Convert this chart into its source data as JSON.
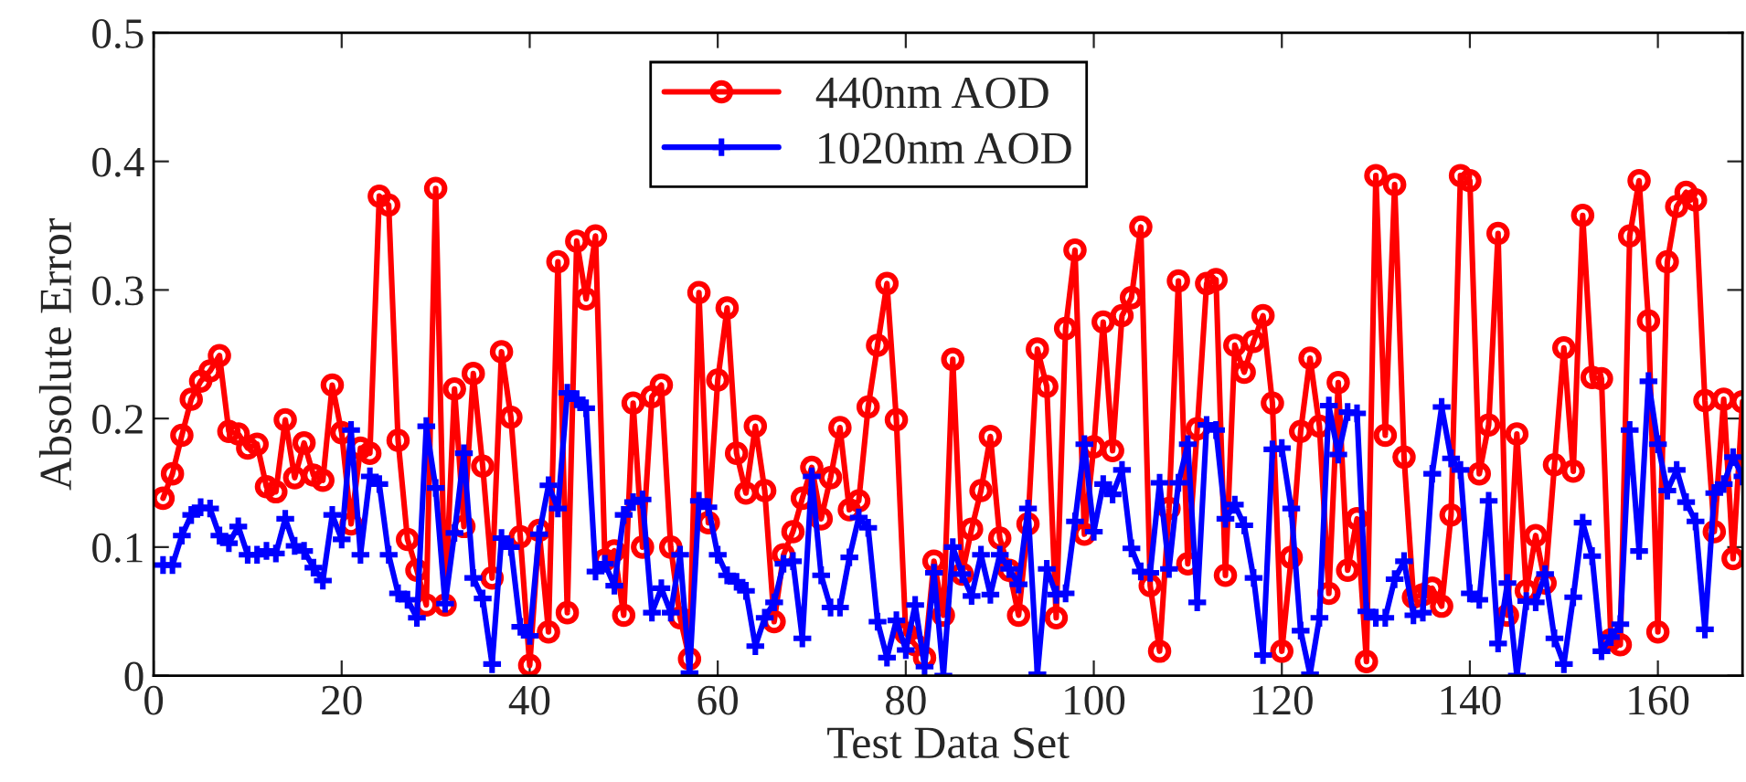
{
  "chart_data": {
    "type": "line",
    "xlabel": "Test Data Set",
    "ylabel": "Absolute Error",
    "xlim": [
      0,
      169
    ],
    "xticks": [
      0,
      20,
      40,
      60,
      80,
      100,
      120,
      140,
      160
    ],
    "ylim": [
      0,
      0.5
    ],
    "yticks": [
      0,
      0.1,
      0.2,
      0.3,
      0.4,
      0.5
    ],
    "x": [
      1,
      2,
      3,
      4,
      5,
      6,
      7,
      8,
      9,
      10,
      11,
      12,
      13,
      14,
      15,
      16,
      17,
      18,
      19,
      20,
      21,
      22,
      23,
      24,
      25,
      26,
      27,
      28,
      29,
      30,
      31,
      32,
      33,
      34,
      35,
      36,
      37,
      38,
      39,
      40,
      41,
      42,
      43,
      44,
      45,
      46,
      47,
      48,
      49,
      50,
      51,
      52,
      53,
      54,
      55,
      56,
      57,
      58,
      59,
      60,
      61,
      62,
      63,
      64,
      65,
      66,
      67,
      68,
      69,
      70,
      71,
      72,
      73,
      74,
      75,
      76,
      77,
      78,
      79,
      80,
      81,
      82,
      83,
      84,
      85,
      86,
      87,
      88,
      89,
      90,
      91,
      92,
      93,
      94,
      95,
      96,
      97,
      98,
      99,
      100,
      101,
      102,
      103,
      104,
      105,
      106,
      107,
      108,
      109,
      110,
      111,
      112,
      113,
      114,
      115,
      116,
      117,
      118,
      119,
      120,
      121,
      122,
      123,
      124,
      125,
      126,
      127,
      128,
      129,
      130,
      131,
      132,
      133,
      134,
      135,
      136,
      137,
      138,
      139,
      140,
      141,
      142,
      143,
      144,
      145,
      146,
      147,
      148,
      149,
      150,
      151,
      152,
      153,
      154,
      155,
      156,
      157,
      158,
      159,
      160,
      161,
      162,
      163,
      164,
      165,
      166,
      167,
      168,
      169
    ],
    "grid": false,
    "legend": "top",
    "line_style": "solid",
    "series": [
      {
        "name": "440nm AOD",
        "color": "#ff0000",
        "marker": "circle",
        "values": [
          0.138,
          0.157,
          0.187,
          0.215,
          0.229,
          0.237,
          0.249,
          0.19,
          0.188,
          0.177,
          0.18,
          0.147,
          0.143,
          0.199,
          0.154,
          0.181,
          0.156,
          0.152,
          0.226,
          0.189,
          0.118,
          0.177,
          0.173,
          0.373,
          0.366,
          0.183,
          0.106,
          0.082,
          0.055,
          0.379,
          0.055,
          0.223,
          0.116,
          0.235,
          0.163,
          0.076,
          0.252,
          0.201,
          0.108,
          0.008,
          0.113,
          0.034,
          0.322,
          0.049,
          0.338,
          0.293,
          0.342,
          0.09,
          0.097,
          0.047,
          0.212,
          0.1,
          0.217,
          0.226,
          0.1,
          0.045,
          0.013,
          0.298,
          0.119,
          0.23,
          0.286,
          0.173,
          0.142,
          0.194,
          0.144,
          0.042,
          0.094,
          0.112,
          0.138,
          0.162,
          0.122,
          0.154,
          0.193,
          0.129,
          0.136,
          0.209,
          0.257,
          0.305,
          0.199,
          0.033,
          0.024,
          0.014,
          0.089,
          0.047,
          0.246,
          0.079,
          0.114,
          0.144,
          0.186,
          0.107,
          0.082,
          0.047,
          0.118,
          0.254,
          0.225,
          0.045,
          0.27,
          0.331,
          0.11,
          0.178,
          0.275,
          0.175,
          0.28,
          0.294,
          0.349,
          0.07,
          0.019,
          0.13,
          0.307,
          0.087,
          0.192,
          0.305,
          0.308,
          0.078,
          0.257,
          0.236,
          0.26,
          0.28,
          0.212,
          0.019,
          0.092,
          0.19,
          0.247,
          0.194,
          0.064,
          0.228,
          0.082,
          0.122,
          0.011,
          0.389,
          0.187,
          0.382,
          0.17,
          0.061,
          0.063,
          0.068,
          0.054,
          0.125,
          0.389,
          0.385,
          0.157,
          0.195,
          0.344,
          0.047,
          0.188,
          0.066,
          0.109,
          0.072,
          0.164,
          0.255,
          0.159,
          0.358,
          0.232,
          0.231,
          0.028,
          0.024,
          0.342,
          0.385,
          0.276,
          0.034,
          0.322,
          0.365,
          0.376,
          0.37,
          0.214,
          0.112,
          0.215,
          0.091,
          0.213
        ]
      },
      {
        "name": "1020nm AOD",
        "color": "#0000ff",
        "marker": "cross",
        "values": [
          0.086,
          0.086,
          0.109,
          0.125,
          0.131,
          0.13,
          0.109,
          0.103,
          0.116,
          0.094,
          0.094,
          0.097,
          0.095,
          0.122,
          0.101,
          0.097,
          0.084,
          0.074,
          0.125,
          0.106,
          0.191,
          0.094,
          0.155,
          0.149,
          0.094,
          0.064,
          0.059,
          0.045,
          0.194,
          0.146,
          0.056,
          0.111,
          0.173,
          0.076,
          0.06,
          0.009,
          0.107,
          0.1,
          0.038,
          0.031,
          0.11,
          0.148,
          0.13,
          0.22,
          0.215,
          0.208,
          0.081,
          0.087,
          0.07,
          0.125,
          0.135,
          0.137,
          0.049,
          0.068,
          0.049,
          0.094,
          0.002,
          0.136,
          0.131,
          0.094,
          0.078,
          0.073,
          0.066,
          0.023,
          0.045,
          0.057,
          0.087,
          0.089,
          0.029,
          0.155,
          0.078,
          0.053,
          0.053,
          0.092,
          0.123,
          0.115,
          0.042,
          0.014,
          0.043,
          0.02,
          0.055,
          0.007,
          0.08,
          0.0,
          0.1,
          0.079,
          0.062,
          0.094,
          0.063,
          0.094,
          0.083,
          0.071,
          0.13,
          0.001,
          0.083,
          0.063,
          0.064,
          0.12,
          0.18,
          0.112,
          0.149,
          0.141,
          0.16,
          0.099,
          0.081,
          0.08,
          0.15,
          0.083,
          0.15,
          0.18,
          0.057,
          0.195,
          0.191,
          0.122,
          0.133,
          0.117,
          0.076,
          0.016,
          0.176,
          0.177,
          0.13,
          0.035,
          0.001,
          0.045,
          0.21,
          0.172,
          0.205,
          0.204,
          0.05,
          0.045,
          0.045,
          0.075,
          0.089,
          0.047,
          0.049,
          0.157,
          0.209,
          0.169,
          0.16,
          0.064,
          0.059,
          0.136,
          0.025,
          0.072,
          0.0,
          0.058,
          0.057,
          0.079,
          0.029,
          0.009,
          0.061,
          0.119,
          0.093,
          0.019,
          0.03,
          0.04,
          0.191,
          0.097,
          0.229,
          0.18,
          0.144,
          0.16,
          0.135,
          0.12,
          0.036,
          0.142,
          0.149,
          0.17,
          0.155
        ]
      }
    ]
  }
}
